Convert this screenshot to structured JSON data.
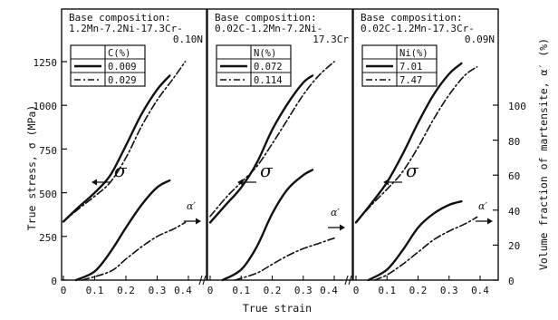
{
  "chart_data": {
    "type": "line",
    "xlabel": "True strain",
    "ylabel_left": "True stress, σ (MPa)",
    "ylabel_right": "Volume fraction of martensite, α′ (%)",
    "xlim": [
      0,
      0.4
    ],
    "ylim_left": [
      0,
      1250
    ],
    "ylim_right": [
      0,
      100
    ],
    "x_ticks": [
      "0",
      "0.1",
      "0.2",
      "0.3",
      "0.4"
    ],
    "y_ticks_left": [
      "0",
      "250",
      "500",
      "750",
      "1000",
      "1250"
    ],
    "y_ticks_right": [
      "0",
      "20",
      "40",
      "60",
      "80",
      "100"
    ],
    "stress_annotation": "σ",
    "martensite_annotation": "α′",
    "panels": [
      {
        "header_title": "Base composition:",
        "header_lines": [
          "1.2Mn-7.2Ni-17.3Cr-",
          "0.10N"
        ],
        "legend_header": "C(%)",
        "series": [
          {
            "name": "0.009",
            "style": "solid",
            "stress": {
              "x": [
                0,
                0.05,
                0.1,
                0.15,
                0.2,
                0.25,
                0.3,
                0.34
              ],
              "y": [
                335,
                420,
                500,
                600,
                770,
                950,
                1090,
                1170
              ]
            },
            "martensite": {
              "x": [
                0.04,
                0.1,
                0.15,
                0.2,
                0.25,
                0.3,
                0.34
              ],
              "y": [
                0,
                5,
                16,
                30,
                43,
                53,
                57
              ]
            }
          },
          {
            "name": "0.029",
            "style": "dashdot",
            "stress": {
              "x": [
                0,
                0.05,
                0.1,
                0.15,
                0.2,
                0.25,
                0.3,
                0.35,
                0.39
              ],
              "y": [
                335,
                410,
                480,
                560,
                700,
                880,
                1030,
                1150,
                1250
              ]
            },
            "martensite": {
              "x": [
                0.06,
                0.15,
                0.2,
                0.25,
                0.3,
                0.35,
                0.39
              ],
              "y": [
                0,
                5,
                12,
                19,
                25,
                29,
                33
              ]
            }
          }
        ]
      },
      {
        "header_title": "Base composition:",
        "header_lines": [
          "0.02C-1.2Mn-7.2Ni-",
          "17.3Cr"
        ],
        "legend_header": "N(%)",
        "series": [
          {
            "name": "0.072",
            "style": "solid",
            "stress": {
              "x": [
                0,
                0.05,
                0.1,
                0.15,
                0.2,
                0.25,
                0.3,
                0.33
              ],
              "y": [
                330,
                430,
                530,
                670,
                860,
                1010,
                1130,
                1170
              ]
            },
            "martensite": {
              "x": [
                0.04,
                0.1,
                0.15,
                0.2,
                0.25,
                0.3,
                0.33
              ],
              "y": [
                0,
                6,
                19,
                38,
                52,
                60,
                63
              ]
            }
          },
          {
            "name": "0.114",
            "style": "dashdot",
            "stress": {
              "x": [
                0,
                0.05,
                0.1,
                0.15,
                0.2,
                0.25,
                0.3,
                0.35,
                0.4
              ],
              "y": [
                365,
                470,
                560,
                650,
                780,
                920,
                1060,
                1170,
                1250
              ]
            },
            "martensite": {
              "x": [
                0.08,
                0.15,
                0.2,
                0.25,
                0.3,
                0.35,
                0.4
              ],
              "y": [
                0,
                4,
                9,
                14,
                18,
                21,
                24
              ]
            }
          }
        ]
      },
      {
        "header_title": "Base composition:",
        "header_lines": [
          "0.02C-1.2Mn-17.3Cr-",
          "0.09N"
        ],
        "legend_header": "Ni(%)",
        "series": [
          {
            "name": "7.01",
            "style": "solid",
            "stress": {
              "x": [
                0,
                0.05,
                0.1,
                0.15,
                0.2,
                0.25,
                0.3,
                0.34
              ],
              "y": [
                330,
                440,
                560,
                720,
                900,
                1060,
                1180,
                1240
              ]
            },
            "martensite": {
              "x": [
                0.04,
                0.1,
                0.15,
                0.2,
                0.25,
                0.3,
                0.34
              ],
              "y": [
                0,
                6,
                17,
                30,
                38,
                43,
                45
              ]
            }
          },
          {
            "name": "7.47",
            "style": "dashdot",
            "stress": {
              "x": [
                0,
                0.05,
                0.1,
                0.15,
                0.2,
                0.25,
                0.3,
                0.35,
                0.39
              ],
              "y": [
                330,
                430,
                520,
                620,
                760,
                920,
                1060,
                1170,
                1220
              ]
            },
            "martensite": {
              "x": [
                0.06,
                0.1,
                0.15,
                0.2,
                0.25,
                0.3,
                0.35,
                0.39
              ],
              "y": [
                0,
                3,
                9,
                16,
                23,
                28,
                32,
                36
              ]
            }
          }
        ]
      }
    ]
  }
}
